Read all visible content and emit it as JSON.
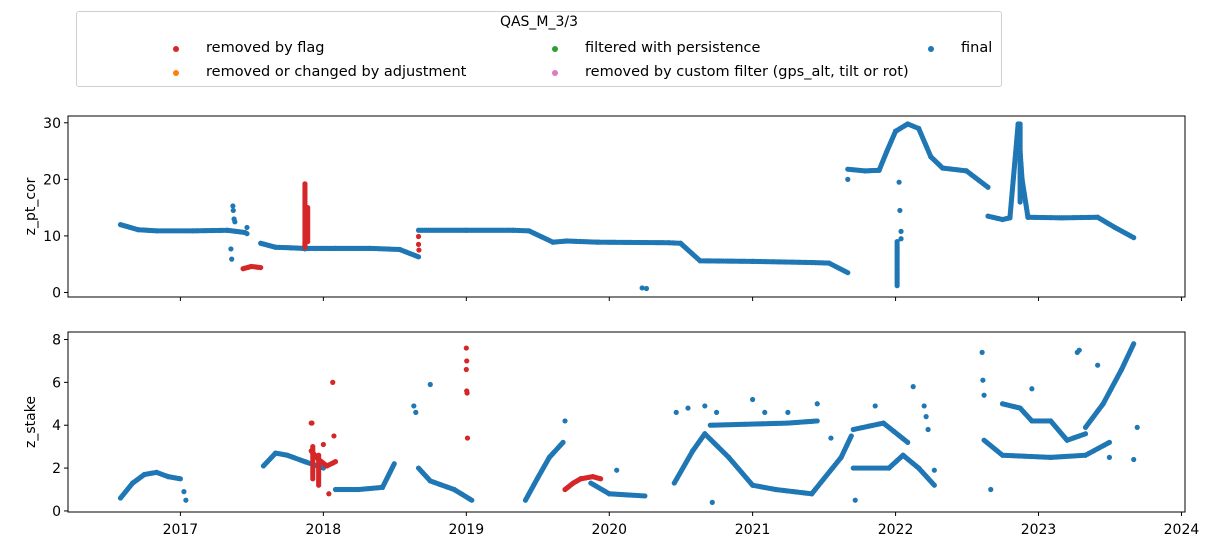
{
  "colors": {
    "removed_by_flag": "#d62728",
    "removed_or_changed": "#ff7f0e",
    "filtered_persistence": "#2ca02c",
    "custom_filter": "#e377c2",
    "final": "#1f77b4"
  },
  "legend": {
    "title": "QAS_M_3/3",
    "items": [
      {
        "label": "removed by flag",
        "color_key": "removed_by_flag"
      },
      {
        "label": "removed or changed by adjustment",
        "color_key": "removed_or_changed"
      },
      {
        "label": "filtered with persistence",
        "color_key": "filtered_persistence"
      },
      {
        "label": "removed by custom filter (gps_alt, tilt or rot)",
        "color_key": "custom_filter"
      },
      {
        "label": "final",
        "color_key": "final"
      }
    ]
  },
  "chart_data": [
    {
      "type": "scatter",
      "ylabel": "z_pt_cor",
      "xlabel": "",
      "xlim": [
        "2016-03-20",
        "2024-01-10"
      ],
      "ylim": [
        -0.8,
        31.2
      ],
      "yticks": [
        0,
        10,
        20,
        30
      ],
      "xticks": [
        "2017",
        "2018",
        "2019",
        "2020",
        "2021",
        "2022",
        "2023",
        "2024"
      ],
      "show_xtick_labels": false,
      "series": [
        {
          "name": "final",
          "color_key": "final",
          "segments": [
            [
              [
                "2016-08-01",
                12.0
              ],
              [
                "2016-09-15",
                11.1
              ],
              [
                "2016-11-01",
                10.9
              ],
              [
                "2017-02-01",
                10.9
              ],
              [
                "2017-05-01",
                11.0
              ],
              [
                "2017-06-15",
                10.6
              ]
            ],
            [
              [
                "2017-07-25",
                8.7
              ],
              [
                "2017-09-01",
                8.0
              ],
              [
                "2017-10-10",
                7.9
              ],
              [
                "2017-11-10",
                7.8
              ],
              [
                "2018-02-01",
                7.8
              ],
              [
                "2018-05-01",
                7.8
              ],
              [
                "2018-07-15",
                7.6
              ],
              [
                "2018-09-01",
                6.3
              ]
            ],
            [
              [
                "2018-09-01",
                11.0
              ],
              [
                "2019-01-01",
                11.0
              ],
              [
                "2019-05-01",
                11.0
              ],
              [
                "2019-06-10",
                10.9
              ],
              [
                "2019-08-10",
                8.9
              ],
              [
                "2019-09-15",
                9.1
              ],
              [
                "2019-12-01",
                8.9
              ],
              [
                "2020-06-01",
                8.8
              ],
              [
                "2020-07-01",
                8.7
              ],
              [
                "2020-08-20",
                5.6
              ],
              [
                "2021-01-01",
                5.5
              ],
              [
                "2021-06-01",
                5.3
              ],
              [
                "2021-07-15",
                5.2
              ],
              [
                "2021-09-01",
                3.5
              ]
            ],
            [
              [
                "2021-09-01",
                21.8
              ],
              [
                "2021-10-15",
                21.5
              ],
              [
                "2021-11-20",
                21.6
              ],
              [
                "2021-12-10",
                25.0
              ],
              [
                "2022-01-01",
                28.5
              ],
              [
                "2022-02-01",
                29.8
              ],
              [
                "2022-03-01",
                29.0
              ],
              [
                "2022-04-01",
                24.0
              ],
              [
                "2022-05-01",
                22.0
              ],
              [
                "2022-07-01",
                21.5
              ],
              [
                "2022-08-25",
                18.6
              ]
            ],
            [
              [
                "2022-08-25",
                13.5
              ],
              [
                "2022-10-01",
                12.9
              ],
              [
                "2022-10-20",
                13.2
              ],
              [
                "2022-11-10",
                29.8
              ],
              [
                "2022-11-20",
                20.0
              ],
              [
                "2022-12-05",
                13.3
              ],
              [
                "2023-03-01",
                13.2
              ],
              [
                "2023-06-01",
                13.3
              ],
              [
                "2023-07-15",
                11.5
              ],
              [
                "2023-09-01",
                9.7
              ]
            ]
          ],
          "points": [
            [
              "2017-05-15",
              15.3
            ],
            [
              "2017-05-16",
              14.5
            ],
            [
              "2017-05-18",
              13.0
            ],
            [
              "2017-05-20",
              12.5
            ],
            [
              "2017-05-10",
              7.7
            ],
            [
              "2017-05-12",
              5.9
            ],
            [
              "2017-06-20",
              11.5
            ],
            [
              "2017-06-20",
              10.4
            ],
            [
              "2020-03-25",
              0.8
            ],
            [
              "2020-04-05",
              0.7
            ],
            [
              "2021-09-01",
              20.0
            ],
            [
              "2022-01-10",
              19.5
            ],
            [
              "2022-01-12",
              14.5
            ],
            [
              "2022-01-15",
              10.8
            ],
            [
              "2022-01-15",
              9.5
            ]
          ],
          "vlines": [
            {
              "x": "2022-01-05",
              "y0": 1.2,
              "y1": 9.0
            },
            {
              "x": "2022-11-15",
              "y0": 16.0,
              "y1": 29.8
            },
            {
              "x": "2017-11-15",
              "y0": 7.7,
              "y1": 8.8
            }
          ]
        },
        {
          "name": "removed by flag",
          "color_key": "removed_by_flag",
          "segments": [
            [
              [
                "2017-06-10",
                4.2
              ],
              [
                "2017-07-01",
                4.6
              ],
              [
                "2017-07-25",
                4.4
              ]
            ]
          ],
          "points": [
            [
              "2018-09-01",
              9.9
            ],
            [
              "2018-09-01",
              8.5
            ],
            [
              "2018-09-02",
              7.5
            ]
          ],
          "vlines": [
            {
              "x": "2017-11-15",
              "y0": 8.0,
              "y1": 19.2
            },
            {
              "x": "2017-11-22",
              "y0": 9.0,
              "y1": 15.0
            }
          ]
        }
      ]
    },
    {
      "type": "scatter",
      "ylabel": "z_stake",
      "xlabel": "",
      "xlim": [
        "2016-03-20",
        "2024-01-10"
      ],
      "ylim": [
        -0.05,
        8.35
      ],
      "yticks": [
        0,
        2,
        4,
        6,
        8
      ],
      "xticks": [
        "2017",
        "2018",
        "2019",
        "2020",
        "2021",
        "2022",
        "2023",
        "2024"
      ],
      "show_xtick_labels": true,
      "series": [
        {
          "name": "final",
          "color_key": "final",
          "segments": [
            [
              [
                "2016-08-01",
                0.6
              ],
              [
                "2016-09-01",
                1.3
              ],
              [
                "2016-10-01",
                1.7
              ],
              [
                "2016-11-01",
                1.8
              ],
              [
                "2016-12-01",
                1.6
              ],
              [
                "2017-01-01",
                1.5
              ]
            ],
            [
              [
                "2017-08-01",
                2.1
              ],
              [
                "2017-09-01",
                2.7
              ],
              [
                "2017-10-01",
                2.6
              ],
              [
                "2017-11-15",
                2.3
              ],
              [
                "2018-01-01",
                2.0
              ]
            ],
            [
              [
                "2018-02-01",
                1.0
              ],
              [
                "2018-04-01",
                1.0
              ],
              [
                "2018-06-01",
                1.1
              ],
              [
                "2018-07-01",
                2.2
              ]
            ],
            [
              [
                "2018-09-01",
                2.0
              ],
              [
                "2018-10-01",
                1.4
              ],
              [
                "2018-12-01",
                1.0
              ],
              [
                "2019-01-15",
                0.5
              ]
            ],
            [
              [
                "2019-06-01",
                0.5
              ],
              [
                "2019-07-01",
                1.5
              ],
              [
                "2019-08-01",
                2.5
              ],
              [
                "2019-09-05",
                3.2
              ]
            ],
            [
              [
                "2019-11-15",
                1.3
              ],
              [
                "2020-01-01",
                0.8
              ],
              [
                "2020-04-01",
                0.7
              ]
            ],
            [
              [
                "2020-06-15",
                1.3
              ],
              [
                "2020-08-01",
                2.8
              ],
              [
                "2020-09-01",
                3.6
              ],
              [
                "2020-11-01",
                2.5
              ],
              [
                "2021-01-01",
                1.2
              ],
              [
                "2021-03-01",
                1.0
              ],
              [
                "2021-06-01",
                0.8
              ],
              [
                "2021-08-15",
                2.5
              ],
              [
                "2021-09-10",
                3.5
              ]
            ],
            [
              [
                "2021-09-15",
                2.0
              ],
              [
                "2021-12-15",
                2.0
              ],
              [
                "2022-01-20",
                2.6
              ],
              [
                "2022-03-01",
                2.0
              ],
              [
                "2022-04-10",
                1.2
              ]
            ],
            [
              [
                "2021-09-15",
                3.8
              ],
              [
                "2021-12-01",
                4.1
              ],
              [
                "2022-02-01",
                3.2
              ]
            ],
            [
              [
                "2020-09-15",
                4.0
              ],
              [
                "2021-04-01",
                4.1
              ],
              [
                "2021-06-15",
                4.2
              ]
            ],
            [
              [
                "2022-08-15",
                3.3
              ],
              [
                "2022-10-01",
                2.6
              ],
              [
                "2023-02-01",
                2.5
              ],
              [
                "2023-05-01",
                2.6
              ],
              [
                "2023-07-01",
                3.2
              ]
            ],
            [
              [
                "2022-10-01",
                5.0
              ],
              [
                "2022-11-15",
                4.8
              ],
              [
                "2022-12-15",
                4.2
              ],
              [
                "2023-02-01",
                4.2
              ],
              [
                "2023-03-15",
                3.3
              ],
              [
                "2023-05-01",
                3.6
              ]
            ],
            [
              [
                "2023-05-01",
                3.9
              ],
              [
                "2023-06-15",
                5.0
              ],
              [
                "2023-08-01",
                6.6
              ],
              [
                "2023-09-01",
                7.8
              ]
            ]
          ],
          "points": [
            [
              "2017-01-10",
              0.9
            ],
            [
              "2017-01-15",
              0.5
            ],
            [
              "2018-08-20",
              4.9
            ],
            [
              "2018-08-25",
              4.6
            ],
            [
              "2018-10-01",
              5.9
            ],
            [
              "2019-09-10",
              4.2
            ],
            [
              "2020-01-20",
              1.9
            ],
            [
              "2020-06-20",
              4.6
            ],
            [
              "2020-07-20",
              4.8
            ],
            [
              "2020-09-01",
              4.9
            ],
            [
              "2020-10-01",
              4.6
            ],
            [
              "2021-01-01",
              5.2
            ],
            [
              "2021-02-01",
              4.6
            ],
            [
              "2021-04-01",
              4.6
            ],
            [
              "2021-06-15",
              5.0
            ],
            [
              "2021-07-20",
              3.4
            ],
            [
              "2021-09-20",
              0.5
            ],
            [
              "2021-11-10",
              4.9
            ],
            [
              "2022-02-15",
              5.8
            ],
            [
              "2022-03-15",
              4.9
            ],
            [
              "2022-03-20",
              4.4
            ],
            [
              "2022-03-25",
              3.8
            ],
            [
              "2022-04-10",
              1.9
            ],
            [
              "2022-08-10",
              7.4
            ],
            [
              "2022-08-12",
              6.1
            ],
            [
              "2022-08-15",
              5.4
            ],
            [
              "2022-09-01",
              1.0
            ],
            [
              "2022-12-15",
              5.7
            ],
            [
              "2023-04-10",
              7.4
            ],
            [
              "2023-04-15",
              7.5
            ],
            [
              "2023-06-01",
              6.8
            ],
            [
              "2023-07-01",
              2.5
            ],
            [
              "2023-09-01",
              2.4
            ],
            [
              "2023-09-10",
              3.9
            ],
            [
              "2020-09-20",
              0.4
            ]
          ],
          "vlines": []
        },
        {
          "name": "removed by flag",
          "color_key": "removed_by_flag",
          "segments": [
            [
              [
                "2017-12-01",
                2.8
              ],
              [
                "2017-12-20",
                2.4
              ],
              [
                "2018-01-10",
                2.1
              ],
              [
                "2018-02-01",
                2.3
              ]
            ],
            [
              [
                "2019-09-10",
                1.0
              ],
              [
                "2019-10-01",
                1.3
              ],
              [
                "2019-10-20",
                1.5
              ],
              [
                "2019-11-20",
                1.6
              ],
              [
                "2019-12-10",
                1.5
              ]
            ]
          ],
          "points": [
            [
              "2017-12-01",
              4.1
            ],
            [
              "2017-12-03",
              4.1
            ],
            [
              "2018-01-01",
              3.1
            ],
            [
              "2018-01-15",
              0.8
            ],
            [
              "2018-01-25",
              6.0
            ],
            [
              "2018-01-28",
              3.5
            ],
            [
              "2019-01-01",
              7.6
            ],
            [
              "2019-01-02",
              7.0
            ],
            [
              "2019-01-01",
              6.6
            ],
            [
              "2019-01-02",
              5.6
            ],
            [
              "2019-01-03",
              5.5
            ],
            [
              "2019-01-04",
              3.4
            ]
          ],
          "vlines": [
            {
              "x": "2017-12-05",
              "y0": 1.5,
              "y1": 3.0
            },
            {
              "x": "2017-12-20",
              "y0": 1.2,
              "y1": 2.6
            }
          ]
        }
      ]
    }
  ]
}
